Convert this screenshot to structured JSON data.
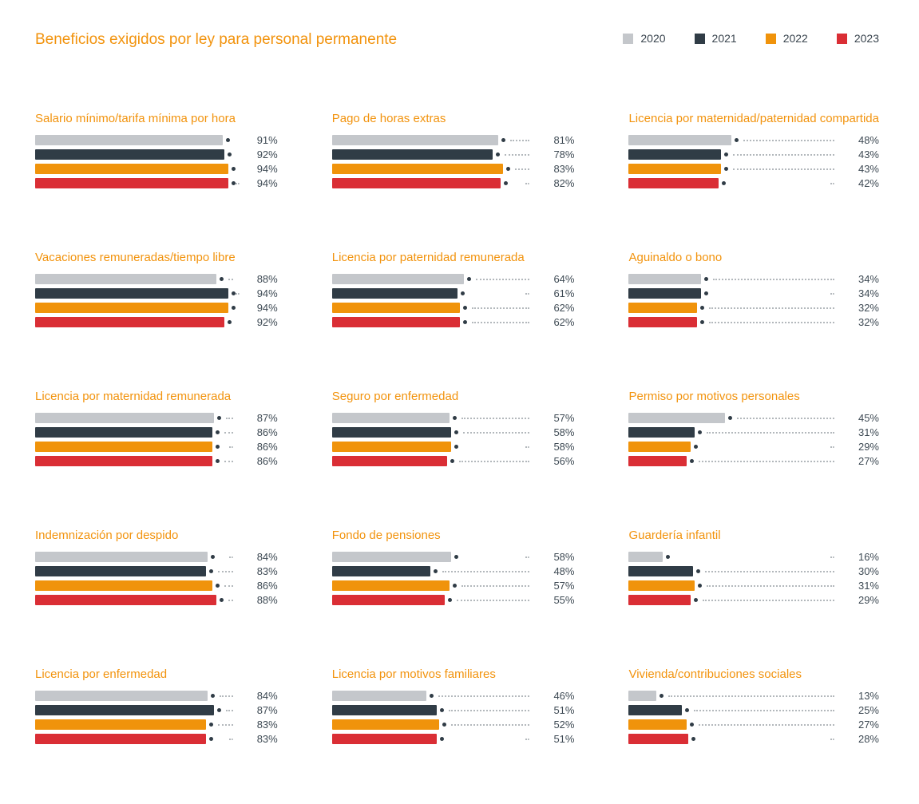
{
  "header": {
    "title": "Beneficios exigidos por ley para personal permanente",
    "legend": [
      {
        "label": "2020",
        "color": "#C4C7CB"
      },
      {
        "label": "2021",
        "color": "#303C46"
      },
      {
        "label": "2022",
        "color": "#F0930B"
      },
      {
        "label": "2023",
        "color": "#DA2E35"
      }
    ]
  },
  "colors": {
    "title_accent": "#F2930D",
    "value_text": "#3E4A54",
    "marker_dot": "#303C46",
    "leader_dots": "#B3B8BC",
    "background": "#FFFFFF"
  },
  "chart_data": {
    "type": "bar",
    "orientation": "horizontal",
    "unit": "%",
    "xlim": [
      0,
      100
    ],
    "grid": false,
    "legend_position": "top-right",
    "title": "Beneficios exigidos por ley para personal permanente",
    "series_labels": [
      "2020",
      "2021",
      "2022",
      "2023"
    ],
    "series_colors": [
      "#C4C7CB",
      "#303C46",
      "#F0930B",
      "#DA2E35"
    ],
    "panels": [
      {
        "title": "Salario mínimo/tarifa mínima por hora",
        "values": [
          91,
          92,
          94,
          94
        ],
        "short_leader_index": 3
      },
      {
        "title": "Pago de horas extras",
        "values": [
          81,
          78,
          83,
          82
        ],
        "short_leader_index": 3
      },
      {
        "title": "Licencia por maternidad/paternidad compartida",
        "values": [
          48,
          43,
          43,
          42
        ],
        "short_leader_index": 3
      },
      {
        "title": "Vacaciones remuneradas/tiempo libre",
        "values": [
          88,
          94,
          94,
          92
        ],
        "short_leader_index": 1
      },
      {
        "title": "Licencia por paternidad remunerada",
        "values": [
          64,
          61,
          62,
          62
        ],
        "short_leader_index": 1
      },
      {
        "title": "Aguinaldo o bono",
        "values": [
          34,
          34,
          32,
          32
        ],
        "short_leader_index": 1
      },
      {
        "title": "Licencia por maternidad remunerada",
        "values": [
          87,
          86,
          86,
          86
        ],
        "short_leader_index": 2
      },
      {
        "title": "Seguro por enfermedad",
        "values": [
          57,
          58,
          58,
          56
        ],
        "short_leader_index": 2
      },
      {
        "title": "Permiso por motivos personales",
        "values": [
          45,
          31,
          29,
          27
        ],
        "short_leader_index": 2
      },
      {
        "title": "Indemnización por despido",
        "values": [
          84,
          83,
          86,
          88
        ],
        "short_leader_index": 0
      },
      {
        "title": "Fondo de pensiones",
        "values": [
          58,
          48,
          57,
          55
        ],
        "short_leader_index": 0
      },
      {
        "title": "Guardería infantil",
        "values": [
          16,
          30,
          31,
          29
        ],
        "short_leader_index": 0
      },
      {
        "title": "Licencia por enfermedad",
        "values": [
          84,
          87,
          83,
          83
        ],
        "short_leader_index": 3
      },
      {
        "title": "Licencia por motivos familiares",
        "values": [
          46,
          51,
          52,
          51
        ],
        "short_leader_index": 3
      },
      {
        "title": "Vivienda/contribuciones sociales",
        "values": [
          13,
          25,
          27,
          28
        ],
        "short_leader_index": 3
      }
    ]
  }
}
